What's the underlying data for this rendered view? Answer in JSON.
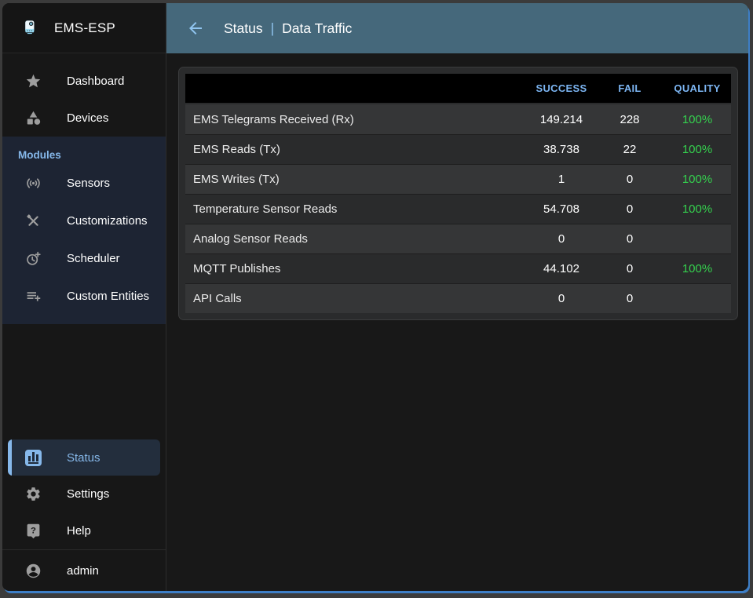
{
  "colors": {
    "accent": "#86b8ea",
    "accent_bright": "#90c5f0",
    "appbar_teal": "#45687b",
    "column_header_blue": "#7cb5f2",
    "success_green": "#35d04e",
    "window_accent_border": "#3d7ec6"
  },
  "sidebar": {
    "title": "EMS-ESP",
    "logo_icon": "boiler-logo-icon",
    "items_top": [
      {
        "label": "Dashboard",
        "icon": "star-icon"
      },
      {
        "label": "Devices",
        "icon": "category-icon"
      }
    ],
    "modules": {
      "label": "Modules",
      "items": [
        {
          "label": "Sensors",
          "icon": "sensors-icon"
        },
        {
          "label": "Customizations",
          "icon": "construction-icon"
        },
        {
          "label": "Scheduler",
          "icon": "more-time-icon"
        },
        {
          "label": "Custom Entities",
          "icon": "playlist-add-icon"
        }
      ]
    },
    "items_bottom": [
      {
        "label": "Status",
        "icon": "bar-chart-icon",
        "selected": true
      },
      {
        "label": "Settings",
        "icon": "gear-icon"
      },
      {
        "label": "Help",
        "icon": "help-bubble-icon"
      }
    ],
    "user": {
      "label": "admin",
      "icon": "account-icon"
    }
  },
  "appbar": {
    "back_icon": "back-arrow-icon",
    "section": "Status",
    "separator": "|",
    "page": "Data Traffic"
  },
  "table": {
    "columns": [
      "",
      "SUCCESS",
      "FAIL",
      "QUALITY"
    ],
    "rows": [
      {
        "label": "EMS Telegrams Received (Rx)",
        "success": "149.214",
        "fail": "228",
        "quality": "100%"
      },
      {
        "label": "EMS Reads (Tx)",
        "success": "38.738",
        "fail": "22",
        "quality": "100%"
      },
      {
        "label": "EMS Writes (Tx)",
        "success": "1",
        "fail": "0",
        "quality": "100%"
      },
      {
        "label": "Temperature Sensor Reads",
        "success": "54.708",
        "fail": "0",
        "quality": "100%"
      },
      {
        "label": "Analog Sensor Reads",
        "success": "0",
        "fail": "0",
        "quality": ""
      },
      {
        "label": "MQTT Publishes",
        "success": "44.102",
        "fail": "0",
        "quality": "100%"
      },
      {
        "label": "API Calls",
        "success": "0",
        "fail": "0",
        "quality": ""
      }
    ]
  }
}
